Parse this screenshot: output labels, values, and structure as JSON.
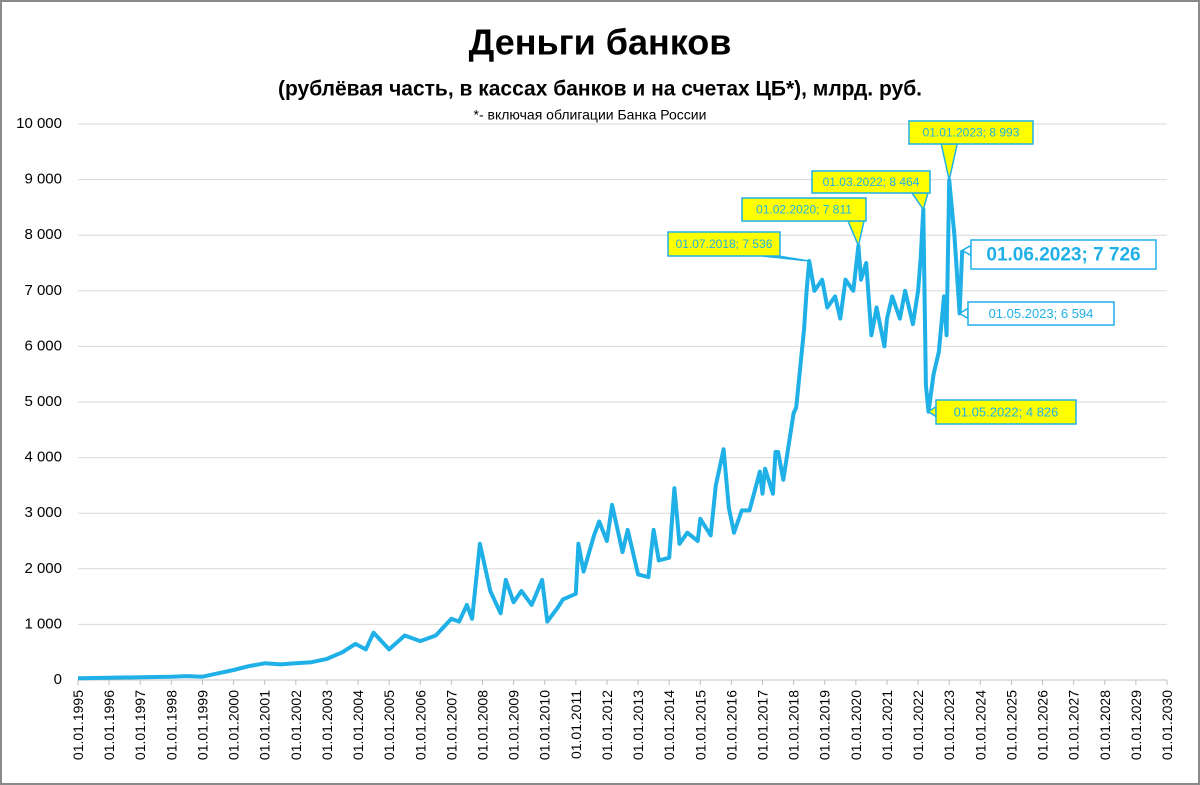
{
  "chart_data": {
    "type": "line",
    "title": "Деньги банков",
    "subtitle": "(рублёвая часть, в кассах банков и на счетах ЦБ*), млрд. руб.",
    "note": "*- включая облигации Банка России",
    "color": "#1fb0e8",
    "grid": true,
    "ylim": [
      0,
      10000
    ],
    "yticks": [
      0,
      {
        "value": 1000,
        "label": "1 000"
      },
      {
        "value": 2000,
        "label": "2 000"
      },
      {
        "value": 3000,
        "label": "3 000"
      },
      {
        "value": 4000,
        "label": "4 000"
      },
      {
        "value": 5000,
        "label": "5 000"
      },
      {
        "value": 6000,
        "label": "6 000"
      },
      {
        "value": 7000,
        "label": "7 000"
      },
      {
        "value": 8000,
        "label": "8 000"
      },
      {
        "value": 9000,
        "label": "9 000"
      },
      {
        "value": 10000,
        "label": "10 000"
      }
    ],
    "xlim": [
      "01.01.1995",
      "01.01.2030"
    ],
    "xticks": [
      "01.01.1995",
      "01.01.1996",
      "01.01.1997",
      "01.01.1998",
      "01.01.1999",
      "01.01.2000",
      "01.01.2001",
      "01.01.2002",
      "01.01.2003",
      "01.01.2004",
      "01.01.2005",
      "01.01.2006",
      "01.01.2007",
      "01.01.2008",
      "01.01.2009",
      "01.01.2010",
      "01.01.2011",
      "01.01.2012",
      "01.01.2013",
      "01.01.2014",
      "01.01.2015",
      "01.01.2016",
      "01.01.2017",
      "01.01.2018",
      "01.01.2019",
      "01.01.2020",
      "01.01.2021",
      "01.01.2022",
      "01.01.2023",
      "01.01.2024",
      "01.01.2025",
      "01.01.2026",
      "01.01.2027",
      "01.01.2028",
      "01.01.2029",
      "01.01.2030"
    ],
    "x": [
      "01.01.1995",
      "01.01.1996",
      "01.01.1997",
      "01.01.1998",
      "01.07.1998",
      "01.01.1999",
      "01.07.1999",
      "01.01.2000",
      "01.07.2000",
      "01.01.2001",
      "01.07.2001",
      "01.01.2002",
      "01.07.2002",
      "01.01.2003",
      "01.07.2003",
      "01.12.2003",
      "01.04.2004",
      "01.07.2004",
      "01.01.2005",
      "01.07.2005",
      "01.01.2006",
      "01.07.2006",
      "01.01.2007",
      "01.04.2007",
      "01.07.2007",
      "01.09.2007",
      "01.12.2007",
      "01.04.2008",
      "01.08.2008",
      "01.10.2008",
      "01.01.2009",
      "01.04.2009",
      "01.08.2009",
      "01.12.2009",
      "01.02.2010",
      "01.06.2010",
      "01.08.2010",
      "01.01.2011",
      "01.02.2011",
      "01.04.2011",
      "01.08.2011",
      "01.10.2011",
      "01.01.2012",
      "01.03.2012",
      "01.07.2012",
      "01.09.2012",
      "01.01.2013",
      "01.05.2013",
      "01.07.2013",
      "01.09.2013",
      "01.01.2014",
      "01.03.2014",
      "01.05.2014",
      "01.08.2014",
      "01.12.2014",
      "01.01.2015",
      "01.05.2015",
      "01.07.2015",
      "01.10.2015",
      "01.12.2015",
      "01.02.2016",
      "01.05.2016",
      "01.08.2016",
      "01.12.2016",
      "01.01.2017",
      "01.02.2017",
      "01.05.2017",
      "01.06.2017",
      "01.07.2017",
      "01.09.2017",
      "01.01.2018",
      "01.02.2018",
      "01.05.2018",
      "01.06.2018",
      "01.07.2018",
      "01.09.2018",
      "01.12.2018",
      "01.02.2019",
      "01.05.2019",
      "01.07.2019",
      "01.09.2019",
      "01.12.2019",
      "01.02.2020",
      "01.03.2020",
      "01.05.2020",
      "01.07.2020",
      "01.09.2020",
      "01.12.2020",
      "01.01.2021",
      "01.03.2021",
      "01.06.2021",
      "01.08.2021",
      "01.11.2021",
      "01.01.2022",
      "01.02.2022",
      "01.03.2022",
      "01.04.2022",
      "01.05.2022",
      "01.07.2022",
      "01.09.2022",
      "01.11.2022",
      "01.12.2022",
      "01.01.2023",
      "01.03.2023",
      "01.05.2023",
      "01.06.2023"
    ],
    "values": [
      30,
      40,
      50,
      60,
      70,
      60,
      120,
      180,
      250,
      300,
      280,
      300,
      320,
      380,
      500,
      650,
      550,
      850,
      550,
      800,
      700,
      800,
      1100,
      1050,
      1350,
      1100,
      2450,
      1600,
      1200,
      1800,
      1400,
      1600,
      1350,
      1800,
      1050,
      1300,
      1450,
      1550,
      2450,
      1950,
      2600,
      2850,
      2500,
      3150,
      2300,
      2700,
      1900,
      1850,
      2700,
      2150,
      2200,
      3450,
      2450,
      2650,
      2500,
      2900,
      2600,
      3500,
      4150,
      3100,
      2650,
      3050,
      3050,
      3750,
      3350,
      3800,
      3350,
      4100,
      4100,
      3600,
      4800,
      4900,
      6300,
      7000,
      7536,
      7000,
      7200,
      6700,
      6900,
      6500,
      7200,
      7000,
      7811,
      7200,
      7500,
      6200,
      6700,
      6000,
      6500,
      6900,
      6500,
      7000,
      6400,
      7000,
      7600,
      8464,
      5300,
      4826,
      5500,
      5900,
      6900,
      6200,
      8993,
      8000,
      6594,
      7726
    ],
    "annotations": [
      {
        "x": "01.07.2018",
        "value": 7536,
        "label": "01.07.2018; 7 536",
        "fill": "#ffff00"
      },
      {
        "x": "01.02.2020",
        "value": 7811,
        "label": "01.02.2020; 7 811",
        "fill": "#ffff00"
      },
      {
        "x": "01.03.2022",
        "value": 8464,
        "label": "01.03.2022; 8 464",
        "fill": "#ffff00"
      },
      {
        "x": "01.01.2023",
        "value": 8993,
        "label": "01.01.2023; 8 993",
        "fill": "#ffff00"
      },
      {
        "x": "01.06.2023",
        "value": 7726,
        "label": "01.06.2023; 7 726",
        "fill": "#ffffff"
      },
      {
        "x": "01.05.2023",
        "value": 6594,
        "label": "01.05.2023; 6 594",
        "fill": "#ffffff"
      },
      {
        "x": "01.05.2022",
        "value": 4826,
        "label": "01.05.2022; 4 826",
        "fill": "#ffff00"
      }
    ]
  }
}
